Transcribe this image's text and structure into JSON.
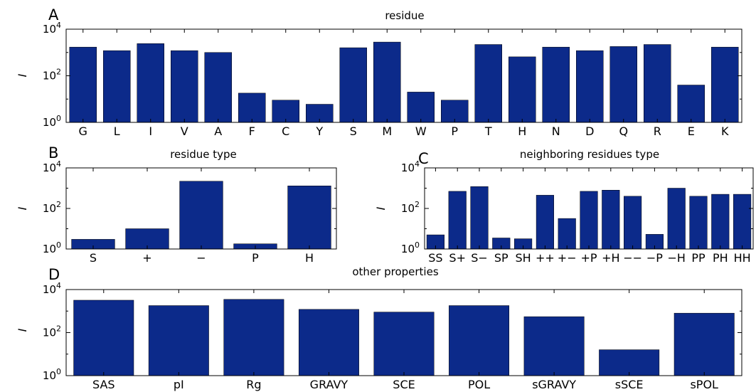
{
  "chart_data": [
    {
      "id": "A",
      "type": "bar",
      "letter": "A",
      "title": "residue",
      "ylabel": "I",
      "yscale": "log",
      "ylim": [
        1,
        10000
      ],
      "yticks": [
        {
          "base": "10",
          "exp": "0"
        },
        {
          "base": "10",
          "exp": "2"
        },
        {
          "base": "10",
          "exp": "4"
        }
      ],
      "categories": [
        "G",
        "L",
        "I",
        "V",
        "A",
        "F",
        "C",
        "Y",
        "S",
        "M",
        "W",
        "P",
        "T",
        "H",
        "N",
        "D",
        "Q",
        "R",
        "E",
        "K"
      ],
      "values": [
        1700,
        1200,
        2400,
        1200,
        1000,
        18,
        9,
        6,
        1600,
        2800,
        20,
        9,
        2200,
        650,
        1700,
        1200,
        1800,
        2200,
        40,
        1700
      ],
      "color": "#0c2a8a"
    },
    {
      "id": "B",
      "type": "bar",
      "letter": "B",
      "title": "residue type",
      "ylabel": "I",
      "yscale": "log",
      "ylim": [
        1,
        10000
      ],
      "yticks": [
        {
          "base": "10",
          "exp": "0"
        },
        {
          "base": "10",
          "exp": "2"
        },
        {
          "base": "10",
          "exp": "4"
        }
      ],
      "categories": [
        "S",
        "+",
        "−",
        "P",
        "H"
      ],
      "values": [
        3,
        10,
        2200,
        1.8,
        1300
      ],
      "color": "#0c2a8a"
    },
    {
      "id": "C",
      "type": "bar",
      "letter": "C",
      "title": "neighboring residues type",
      "ylabel": "I",
      "yscale": "log",
      "ylim": [
        1,
        10000
      ],
      "yticks": [
        {
          "base": "10",
          "exp": "0"
        },
        {
          "base": "10",
          "exp": "2"
        },
        {
          "base": "10",
          "exp": "4"
        }
      ],
      "categories": [
        "SS",
        "S+",
        "S−",
        "SP",
        "SH",
        "++",
        "+−",
        "+P",
        "+H",
        "−−",
        "−P",
        "−H",
        "PP",
        "PH",
        "HH"
      ],
      "values": [
        5,
        700,
        1200,
        3.5,
        3.2,
        450,
        32,
        700,
        800,
        400,
        5.3,
        1000,
        400,
        500,
        500
      ],
      "color": "#0c2a8a"
    },
    {
      "id": "D",
      "type": "bar",
      "letter": "D",
      "title": "other properties",
      "ylabel": "I",
      "yscale": "log",
      "ylim": [
        1,
        10000
      ],
      "yticks": [
        {
          "base": "10",
          "exp": "0"
        },
        {
          "base": "10",
          "exp": "2"
        },
        {
          "base": "10",
          "exp": "4"
        }
      ],
      "categories": [
        "SAS",
        "pI",
        "Rg",
        "GRAVY",
        "SCE",
        "POL",
        "sGRAVY",
        "sSCE",
        "sPOL"
      ],
      "values": [
        3200,
        1800,
        3500,
        1200,
        900,
        1800,
        550,
        16,
        800
      ],
      "color": "#0c2a8a"
    }
  ]
}
